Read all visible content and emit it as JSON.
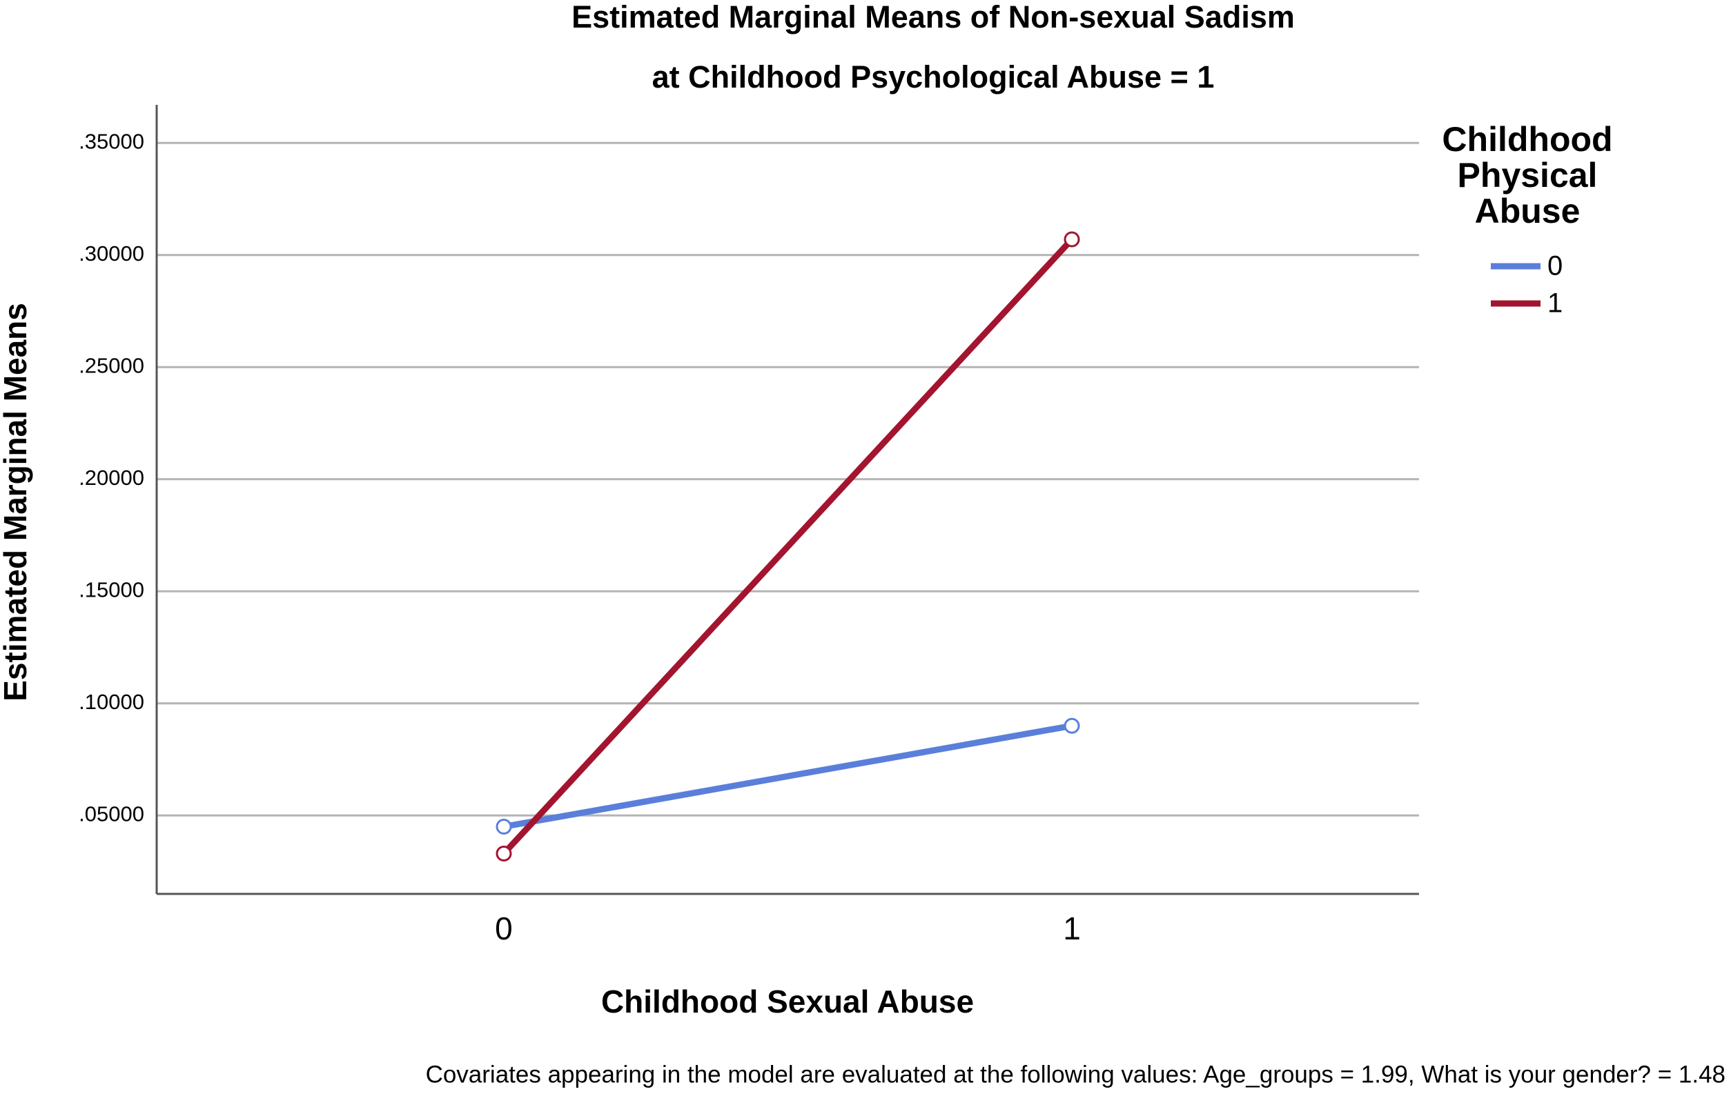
{
  "chart_data": {
    "type": "line",
    "title": "Estimated Marginal Means of Non-sexual Sadism",
    "subtitle": "at Childhood Psychological Abuse = 1",
    "x_label": "Childhood Sexual Abuse",
    "y_label": "Estimated Marginal Means",
    "categories": [
      "0",
      "1"
    ],
    "series": [
      {
        "name": "0",
        "color": "#5a7fdb",
        "values": [
          0.045,
          0.09
        ]
      },
      {
        "name": "1",
        "color": "#a3142f",
        "values": [
          0.033,
          0.307
        ]
      }
    ],
    "legend_title": "Childhood Physical Abuse",
    "legend_position": "right",
    "ylim": [
      0.015,
      0.367
    ],
    "yticks": [
      {
        "value": 0.05,
        "label": ".05000"
      },
      {
        "value": 0.1,
        "label": ".10000"
      },
      {
        "value": 0.15,
        "label": ".15000"
      },
      {
        "value": 0.2,
        "label": ".20000"
      },
      {
        "value": 0.25,
        "label": ".25000"
      },
      {
        "value": 0.3,
        "label": ".30000"
      },
      {
        "value": 0.35,
        "label": ".35000"
      }
    ],
    "grid": true,
    "footnote": "Covariates appearing in the model are evaluated at the following values: Age_groups = 1.99, What is your gender? = 1.48"
  }
}
